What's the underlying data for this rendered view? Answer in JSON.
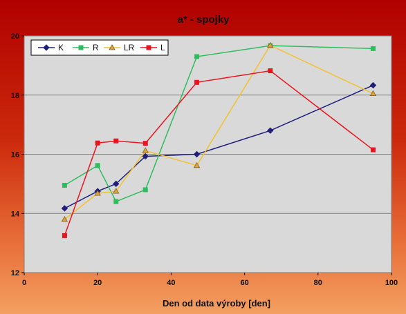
{
  "chart_data": {
    "type": "line",
    "title": "a* - spojky",
    "xlabel": "Den od data výroby [den]",
    "ylabel": "",
    "xlim": [
      0,
      100
    ],
    "ylim": [
      12,
      20
    ],
    "xticks": [
      0,
      20,
      40,
      60,
      80,
      100
    ],
    "yticks": [
      12,
      14,
      16,
      18,
      20
    ],
    "grid": "horizontal",
    "legend_position": "top-left",
    "colors": {
      "plot_background": "#d9d9d9",
      "gridline": "#808080"
    },
    "series": [
      {
        "name": "K",
        "color": "#1f1f7a",
        "marker": "diamond",
        "x": [
          11,
          20,
          25,
          33,
          47,
          67,
          95
        ],
        "y": [
          14.17,
          14.75,
          15.0,
          15.93,
          16.0,
          16.8,
          18.33
        ]
      },
      {
        "name": "R",
        "color": "#2ebd5e",
        "marker": "square",
        "x": [
          11,
          20,
          25,
          33,
          47,
          67,
          95
        ],
        "y": [
          14.95,
          15.62,
          14.4,
          14.8,
          19.3,
          19.67,
          19.57
        ]
      },
      {
        "name": "LR",
        "color": "#f2c12e",
        "marker": "triangle",
        "x": [
          11,
          20,
          25,
          33,
          47,
          67,
          95
        ],
        "y": [
          13.8,
          14.68,
          14.75,
          16.12,
          15.62,
          19.68,
          18.05
        ]
      },
      {
        "name": "L",
        "color": "#e8141e",
        "marker": "square",
        "x": [
          11,
          20,
          25,
          33,
          47,
          67,
          95
        ],
        "y": [
          13.25,
          16.38,
          16.45,
          16.37,
          18.43,
          18.82,
          16.15
        ]
      }
    ]
  }
}
